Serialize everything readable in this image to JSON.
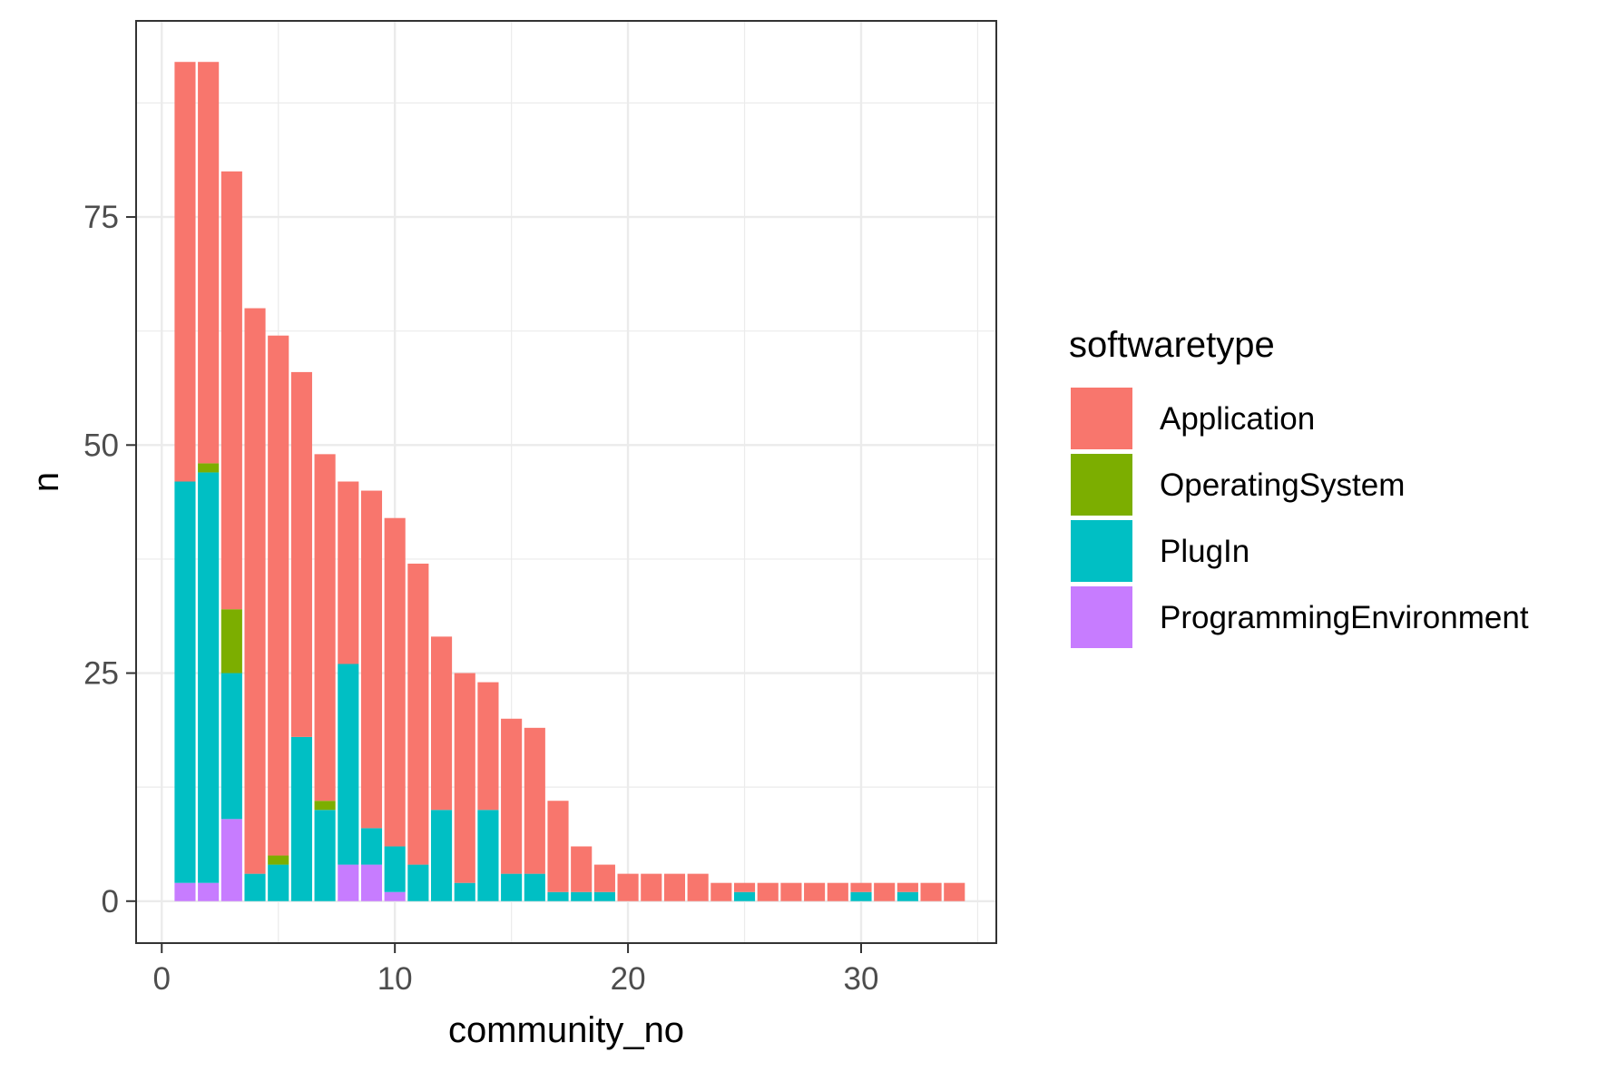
{
  "chart_data": {
    "type": "bar",
    "stacked": true,
    "xlabel": "community_no",
    "ylabel": "n",
    "xlim": [
      -1.1,
      35.8
    ],
    "ylim": [
      -4.6,
      96.5
    ],
    "x_ticks": [
      0,
      10,
      20,
      30
    ],
    "y_ticks": [
      0,
      25,
      50,
      75
    ],
    "grid": true,
    "legend": {
      "title": "softwaretype",
      "placement": "right",
      "entries": [
        "Application",
        "OperatingSystem",
        "PlugIn",
        "ProgrammingEnvironment"
      ]
    },
    "x": [
      1,
      2,
      3,
      4,
      5,
      6,
      7,
      8,
      9,
      10,
      11,
      12,
      13,
      14,
      15,
      16,
      17,
      18,
      19,
      20,
      21,
      22,
      23,
      24,
      25,
      26,
      27,
      28,
      29,
      30,
      31,
      32,
      33,
      34
    ],
    "series": [
      {
        "name": "ProgrammingEnvironment",
        "color": "#C77CFF",
        "values": [
          2,
          2,
          9,
          0,
          0,
          0,
          0,
          4,
          4,
          1,
          0,
          0,
          0,
          0,
          0,
          0,
          0,
          0,
          0,
          0,
          0,
          0,
          0,
          0,
          0,
          0,
          0,
          0,
          0,
          0,
          0,
          0,
          0,
          0
        ]
      },
      {
        "name": "PlugIn",
        "color": "#00BFC4",
        "values": [
          44,
          45,
          16,
          3,
          4,
          18,
          10,
          22,
          4,
          5,
          4,
          10,
          2,
          10,
          3,
          3,
          1,
          1,
          1,
          0,
          0,
          0,
          0,
          0,
          1,
          0,
          0,
          0,
          0,
          1,
          0,
          1,
          0,
          0
        ]
      },
      {
        "name": "OperatingSystem",
        "color": "#7CAE00",
        "values": [
          0,
          1,
          7,
          0,
          1,
          0,
          1,
          0,
          0,
          0,
          0,
          0,
          0,
          0,
          0,
          0,
          0,
          0,
          0,
          0,
          0,
          0,
          0,
          0,
          0,
          0,
          0,
          0,
          0,
          0,
          0,
          0,
          0,
          0
        ]
      },
      {
        "name": "Application",
        "color": "#F8766D",
        "values": [
          46,
          44,
          48,
          62,
          57,
          40,
          38,
          20,
          37,
          36,
          33,
          19,
          23,
          14,
          17,
          16,
          10,
          5,
          3,
          3,
          3,
          3,
          3,
          2,
          1,
          2,
          2,
          2,
          2,
          1,
          2,
          1,
          2,
          2
        ]
      }
    ]
  }
}
